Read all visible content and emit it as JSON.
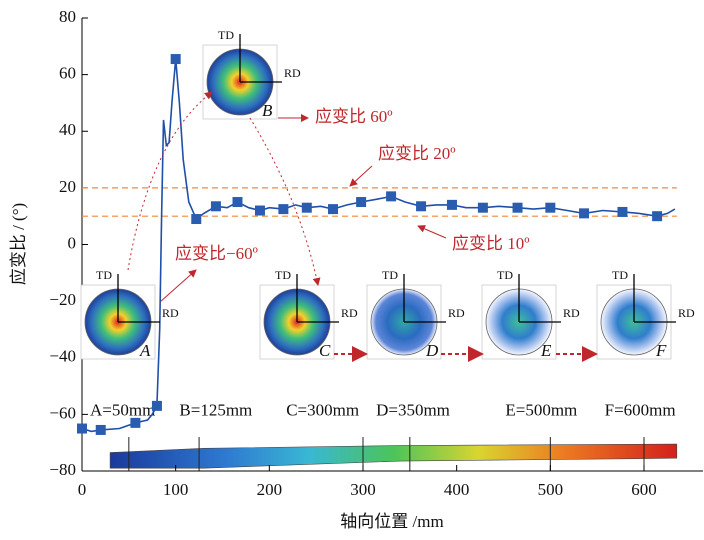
{
  "chart_data": {
    "type": "line",
    "x_label": "轴向位置 /mm",
    "y_label": "应变比 / (°)",
    "xlim": [
      0,
      663
    ],
    "ylim": [
      -80,
      80
    ],
    "xticks": [
      0,
      100,
      200,
      300,
      400,
      500,
      600
    ],
    "yticks": [
      {
        "value": -80,
        "label": "−80"
      },
      {
        "value": -60,
        "label": "−60"
      },
      {
        "value": -40,
        "label": "−40"
      },
      {
        "value": -20,
        "label": "−20"
      },
      0,
      20,
      40,
      60,
      80
    ],
    "series": [
      {
        "color": "#1f4fa8",
        "x": [
          0,
          10,
          20,
          40,
          57,
          70,
          75,
          80,
          83,
          85,
          87,
          90,
          93,
          96,
          100,
          104,
          108,
          114,
          122,
          130,
          143,
          155,
          166,
          178,
          190,
          200,
          215,
          228,
          240,
          255,
          268,
          283,
          298,
          315,
          330,
          345,
          362,
          378,
          395,
          410,
          428,
          445,
          465,
          482,
          500,
          518,
          536,
          556,
          577,
          595,
          614,
          625,
          633
        ],
        "values": [
          -65,
          -66,
          -65.5,
          -65,
          -63,
          -62,
          -60,
          -57,
          -30,
          10,
          44,
          35,
          36,
          50,
          65.5,
          50,
          30,
          15,
          9,
          11,
          13.5,
          13,
          15,
          13,
          12,
          13,
          12.5,
          14,
          13,
          13.5,
          12.5,
          14,
          15,
          16,
          17,
          15,
          13.5,
          14,
          14,
          13,
          13,
          13.5,
          13,
          12.5,
          13,
          12,
          11,
          12,
          11.5,
          11,
          10,
          11,
          12.5
        ]
      },
      {
        "color": "#2a5db0",
        "marker": "square",
        "x": [
          0,
          20,
          57,
          80,
          100,
          122,
          143,
          166,
          190,
          215,
          240,
          268,
          298,
          330,
          362,
          395,
          428,
          465,
          500,
          536,
          577,
          614
        ],
        "values": [
          -65,
          -65.5,
          -63,
          -57,
          65.5,
          9,
          13.5,
          15,
          12,
          12.5,
          13,
          12.5,
          15,
          17,
          13.5,
          14,
          13,
          13,
          13,
          11,
          11.5,
          10
        ]
      }
    ],
    "reference_lines": [
      {
        "value": 20,
        "color": "#f08a3c"
      },
      {
        "value": 10,
        "color": "#f08a3c"
      }
    ],
    "annotations": [
      "应变比 60º",
      "应变比 20º",
      "应变比 10º",
      "应变比−60º"
    ],
    "positions": [
      {
        "label": "A=50mm",
        "x": 50
      },
      {
        "label": "B=125mm",
        "x": 125
      },
      {
        "label": "C=300mm",
        "x": 300
      },
      {
        "label": "D=350mm",
        "x": 350
      },
      {
        "label": "E=500mm",
        "x": 500
      },
      {
        "label": "F=600mm",
        "x": 600
      }
    ],
    "pole_figures": {
      "axis_labels": [
        "TD",
        "RD"
      ],
      "labels": [
        "A",
        "B",
        "C",
        "D",
        "E",
        "F"
      ]
    }
  }
}
